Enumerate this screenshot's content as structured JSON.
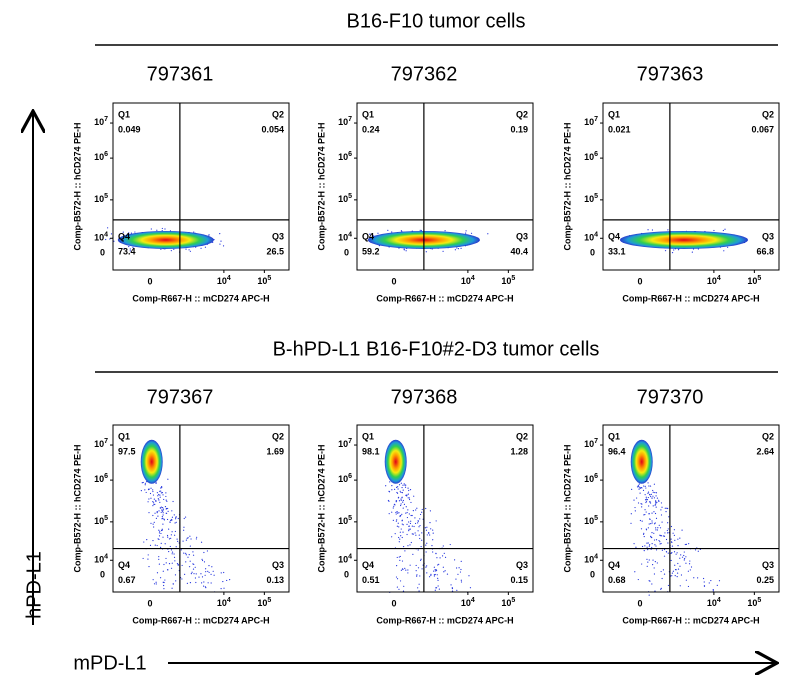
{
  "figure": {
    "y_axis_label": "hPD-L1",
    "x_axis_label": "mPD-L1",
    "plot_x_label": "Comp-R667-H :: mCD274 APC-H",
    "plot_y_label": "Comp-B572-H :: hCD274 PE-H",
    "quadrant_names": [
      "Q1",
      "Q2",
      "Q3",
      "Q4"
    ],
    "y_ticks": [
      {
        "base": "10",
        "exp": "7"
      },
      {
        "base": "10",
        "exp": "6"
      },
      {
        "base": "10",
        "exp": "5"
      },
      {
        "base": "10",
        "exp": "4"
      }
    ],
    "zero": "0",
    "x_ticks": [
      {
        "base": "10",
        "exp": "4"
      },
      {
        "base": "10",
        "exp": "5"
      }
    ],
    "groups": [
      {
        "title": "B16-F10 tumor cells",
        "panels": [
          {
            "id": "797361",
            "q1": "0.049",
            "q2": "0.054",
            "q3": "26.5",
            "q4": "73.4"
          },
          {
            "id": "797362",
            "q1": "0.24",
            "q2": "0.19",
            "q3": "40.4",
            "q4": "59.2"
          },
          {
            "id": "797363",
            "q1": "0.021",
            "q2": "0.067",
            "q3": "66.8",
            "q4": "33.1"
          }
        ]
      },
      {
        "title": "B-hPD-L1 B16-F10#2-D3 tumor cells",
        "panels": [
          {
            "id": "797367",
            "q1": "97.5",
            "q2": "1.69",
            "q3": "0.13",
            "q4": "0.67"
          },
          {
            "id": "797368",
            "q1": "98.1",
            "q2": "1.28",
            "q3": "0.15",
            "q4": "0.51"
          },
          {
            "id": "797370",
            "q1": "96.4",
            "q2": "2.64",
            "q3": "0.25",
            "q4": "0.68"
          }
        ]
      }
    ]
  }
}
